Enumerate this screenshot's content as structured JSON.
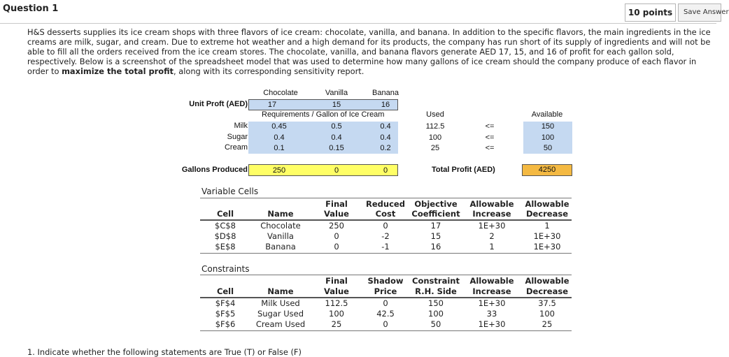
{
  "header": {
    "title": "Question 1",
    "points": "10 points",
    "save_label": "Save Answer"
  },
  "prompt": {
    "text_before": "H&S desserts supplies its ice cream shops with three flavors of ice cream: chocolate, vanilla, and banana. In addition to the specific flavors, the main ingredients in the ice creams are milk, sugar, and cream. Due to extreme hot weather and a high demand for its products, the company has run short of its supply of ingredients and will not be able to fill all the orders received from the ice cream stores. The chocolate, vanilla, and banana flavors generate AED 17, 15, and 16 of profit for each gallon sold, respectively. Below is a screenshot of the spreadsheet model that was used to determine how many gallons of ice cream should the company produce of each flavor in order to ",
    "bold_1": "maximize the total profit",
    "text_after": ", along with its corresponding sensitivity report."
  },
  "model": {
    "flavors": [
      "Chocolate",
      "Vanilla",
      "Banana"
    ],
    "unit_profit_label": "Unit Proft (AED)",
    "unit_profits": [
      "17",
      "15",
      "16"
    ],
    "requirements_label": "Requirements / Gallon of Ice Cream",
    "used_label": "Used",
    "available_label": "Available",
    "ingredients": [
      {
        "name": "Milk",
        "req": [
          "0.45",
          "0.5",
          "0.4"
        ],
        "used": "112.5",
        "sign": "<=",
        "available": "150"
      },
      {
        "name": "Sugar",
        "req": [
          "0.4",
          "0.4",
          "0.4"
        ],
        "used": "100",
        "sign": "<=",
        "available": "100"
      },
      {
        "name": "Cream",
        "req": [
          "0.1",
          "0.15",
          "0.2"
        ],
        "used": "25",
        "sign": "<=",
        "available": "50"
      }
    ],
    "gallons_label": "Gallons Produced",
    "gallons": [
      "250",
      "0",
      "0"
    ],
    "total_profit_label": "Total Profit (AED)",
    "total_profit": "4250"
  },
  "variable_cells": {
    "title": "Variable Cells",
    "headers": {
      "cell": "Cell",
      "name": "Name",
      "final_1": "Final",
      "final_2": "Value",
      "rc_1": "Reduced",
      "rc_2": "Cost",
      "oc_1": "Objective",
      "oc_2": "Coefficient",
      "ai_1": "Allowable",
      "ai_2": "Increase",
      "ad_1": "Allowable",
      "ad_2": "Decrease"
    },
    "rows": [
      {
        "cell": "$C$8",
        "name": "Chocolate",
        "final": "250",
        "rc": "0",
        "oc": "17",
        "ai": "1E+30",
        "ad": "1"
      },
      {
        "cell": "$D$8",
        "name": "Vanilla",
        "final": "0",
        "rc": "-2",
        "oc": "15",
        "ai": "2",
        "ad": "1E+30"
      },
      {
        "cell": "$E$8",
        "name": "Banana",
        "final": "0",
        "rc": "-1",
        "oc": "16",
        "ai": "1",
        "ad": "1E+30"
      }
    ]
  },
  "constraints": {
    "title": "Constraints",
    "headers": {
      "cell": "Cell",
      "name": "Name",
      "final_1": "Final",
      "final_2": "Value",
      "sp_1": "Shadow",
      "sp_2": "Price",
      "rhs_1": "Constraint",
      "rhs_2": "R.H. Side",
      "ai_1": "Allowable",
      "ai_2": "Increase",
      "ad_1": "Allowable",
      "ad_2": "Decrease"
    },
    "rows": [
      {
        "cell": "$F$4",
        "name": "Milk Used",
        "final": "112.5",
        "sp": "0",
        "rhs": "150",
        "ai": "1E+30",
        "ad": "37.5"
      },
      {
        "cell": "$F$5",
        "name": "Sugar Used",
        "final": "100",
        "sp": "42.5",
        "rhs": "100",
        "ai": "33",
        "ad": "100"
      },
      {
        "cell": "$F$6",
        "name": "Cream Used",
        "final": "25",
        "sp": "0",
        "rhs": "50",
        "ai": "1E+30",
        "ad": "25"
      }
    ]
  },
  "cutoff_text": "1. Indicate whether the following statements are True (T) or False (F)"
}
